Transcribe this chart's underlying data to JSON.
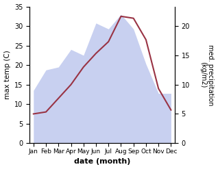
{
  "months": [
    "Jan",
    "Feb",
    "Mar",
    "Apr",
    "May",
    "Jun",
    "Jul",
    "Aug",
    "Sep",
    "Oct",
    "Nov",
    "Dec"
  ],
  "max_temp": [
    7.5,
    8.0,
    11.5,
    15.0,
    19.5,
    23.0,
    26.0,
    32.5,
    32.0,
    26.5,
    14.0,
    8.5
  ],
  "precipitation": [
    9.0,
    12.5,
    13.0,
    16.0,
    15.0,
    20.5,
    19.5,
    22.0,
    19.5,
    13.5,
    8.5,
    8.5
  ],
  "temp_color": "#993344",
  "precip_fill_color": "#c8d0f0",
  "ylim_left": [
    0,
    35
  ],
  "ylim_right": [
    0,
    23.33
  ],
  "yticks_left": [
    0,
    5,
    10,
    15,
    20,
    25,
    30,
    35
  ],
  "yticks_right": [
    0,
    5,
    10,
    15,
    20
  ],
  "xlabel": "date (month)",
  "ylabel_left": "max temp (C)",
  "ylabel_right": "med. precipitation\n(kg/m2)",
  "figsize": [
    3.18,
    2.47
  ],
  "dpi": 100
}
